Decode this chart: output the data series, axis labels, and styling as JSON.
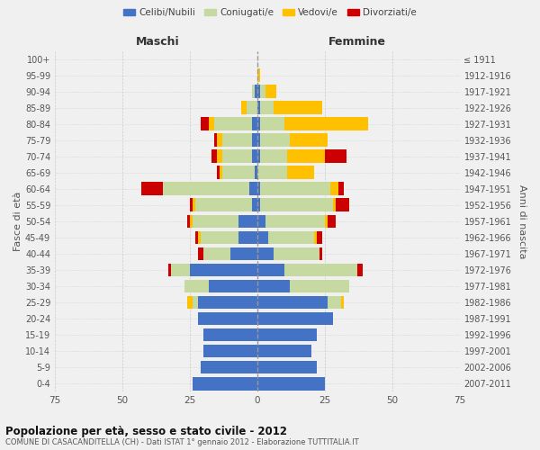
{
  "age_groups": [
    "0-4",
    "5-9",
    "10-14",
    "15-19",
    "20-24",
    "25-29",
    "30-34",
    "35-39",
    "40-44",
    "45-49",
    "50-54",
    "55-59",
    "60-64",
    "65-69",
    "70-74",
    "75-79",
    "80-84",
    "85-89",
    "90-94",
    "95-99",
    "100+"
  ],
  "birth_years": [
    "2007-2011",
    "2002-2006",
    "1997-2001",
    "1992-1996",
    "1987-1991",
    "1982-1986",
    "1977-1981",
    "1972-1976",
    "1967-1971",
    "1962-1966",
    "1957-1961",
    "1952-1956",
    "1947-1951",
    "1942-1946",
    "1937-1941",
    "1932-1936",
    "1927-1931",
    "1922-1926",
    "1917-1921",
    "1912-1916",
    "≤ 1911"
  ],
  "maschi": {
    "celibi": [
      24,
      21,
      20,
      20,
      22,
      22,
      18,
      25,
      10,
      7,
      7,
      2,
      3,
      1,
      2,
      2,
      2,
      0,
      1,
      0,
      0
    ],
    "coniugati": [
      0,
      0,
      0,
      0,
      0,
      2,
      9,
      7,
      10,
      14,
      17,
      21,
      32,
      12,
      11,
      11,
      14,
      4,
      1,
      0,
      0
    ],
    "vedove": [
      0,
      0,
      0,
      0,
      0,
      2,
      0,
      0,
      0,
      1,
      1,
      1,
      0,
      1,
      2,
      2,
      2,
      2,
      0,
      0,
      0
    ],
    "divorziate": [
      0,
      0,
      0,
      0,
      0,
      0,
      0,
      1,
      2,
      1,
      1,
      1,
      8,
      1,
      2,
      1,
      3,
      0,
      0,
      0,
      0
    ]
  },
  "femmine": {
    "nubili": [
      25,
      22,
      20,
      22,
      28,
      26,
      12,
      10,
      6,
      4,
      3,
      1,
      1,
      0,
      1,
      1,
      1,
      1,
      1,
      0,
      0
    ],
    "coniugate": [
      0,
      0,
      0,
      0,
      0,
      5,
      22,
      27,
      17,
      17,
      22,
      27,
      26,
      11,
      10,
      11,
      9,
      5,
      2,
      0,
      0
    ],
    "vedove": [
      0,
      0,
      0,
      0,
      0,
      1,
      0,
      0,
      0,
      1,
      1,
      1,
      3,
      10,
      14,
      14,
      31,
      18,
      4,
      1,
      0
    ],
    "divorziate": [
      0,
      0,
      0,
      0,
      0,
      0,
      0,
      2,
      1,
      2,
      3,
      5,
      2,
      0,
      8,
      0,
      0,
      0,
      0,
      0,
      0
    ]
  },
  "colors": {
    "celibi": "#4472C4",
    "coniugati": "#c5d9a0",
    "vedove": "#ffc000",
    "divorziate": "#cc0000"
  },
  "title": "Popolazione per età, sesso e stato civile - 2012",
  "subtitle": "COMUNE DI CASACANDITELLA (CH) - Dati ISTAT 1° gennaio 2012 - Elaborazione TUTTITALIA.IT",
  "xlim": 75,
  "xlabel_left": "Maschi",
  "xlabel_right": "Femmine",
  "ylabel_left": "Fasce di età",
  "ylabel_right": "Anni di nascita",
  "bg_color": "#f0f0f0",
  "legend_labels": [
    "Celibi/Nubili",
    "Coniugati/e",
    "Vedovi/e",
    "Divorziati/e"
  ]
}
